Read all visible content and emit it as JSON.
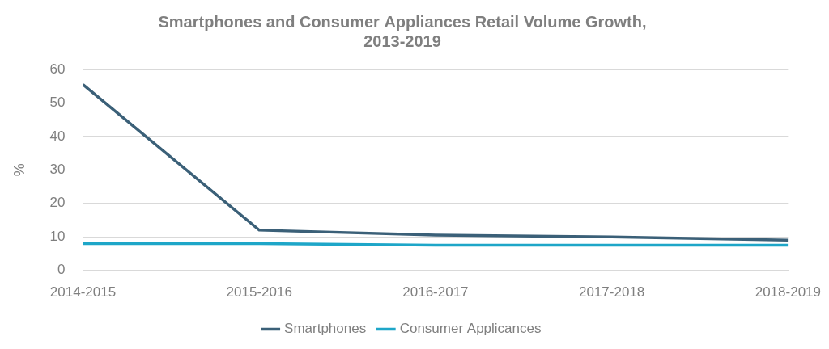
{
  "chart_data": {
    "type": "line",
    "title": "Smartphones and Consumer Appliances Retail Volume Growth, 2013-2019",
    "ylabel": "%",
    "categories": [
      "2014-2015",
      "2015-2016",
      "2016-2017",
      "2017-2018",
      "2018-2019"
    ],
    "series": [
      {
        "name": "Smartphones",
        "color": "#3b6078",
        "values": [
          55.5,
          12,
          10.5,
          10,
          9
        ]
      },
      {
        "name": "Consumer Applicances",
        "color": "#1ea6c8",
        "values": [
          8,
          8,
          7.5,
          7.5,
          7.5
        ]
      }
    ],
    "ylim": [
      0,
      60
    ],
    "yticks": [
      0,
      10,
      20,
      30,
      40,
      50,
      60
    ],
    "grid": true,
    "legend": "bottom"
  }
}
